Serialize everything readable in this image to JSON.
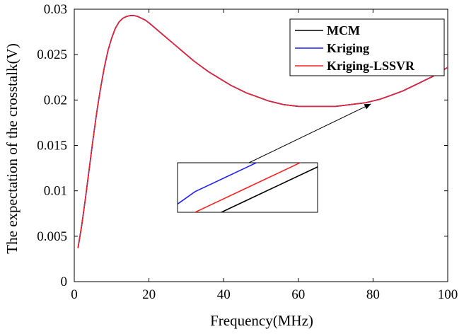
{
  "chart_data": {
    "type": "line",
    "xlabel": "Frequency(MHz)",
    "ylabel": "The expectation of the crosstalk(V)",
    "xlim": [
      0,
      100
    ],
    "ylim": [
      0,
      0.03
    ],
    "grid": false,
    "legend_position": "top-right",
    "xticks": [
      0,
      20,
      40,
      60,
      80,
      100
    ],
    "xtick_labels": [
      "0",
      "20",
      "40",
      "60",
      "80",
      "100"
    ],
    "yticks": [
      0,
      0.005,
      0.01,
      0.015,
      0.02,
      0.025,
      0.03
    ],
    "ytick_labels": [
      "0",
      "0.005",
      "0.01",
      "0.015",
      "0.02",
      "0.025",
      "0.03"
    ],
    "x": [
      1,
      2,
      3,
      4,
      5,
      6,
      7,
      8,
      9,
      10,
      11,
      12,
      13,
      14,
      15,
      16,
      17,
      18,
      19,
      20,
      22,
      24,
      26,
      28,
      30,
      32,
      34,
      36,
      38,
      40,
      42,
      44,
      46,
      48,
      50,
      52,
      54,
      56,
      58,
      60,
      62,
      64,
      66,
      68,
      70,
      72,
      74,
      76,
      78,
      80,
      82,
      84,
      86,
      88,
      90,
      92,
      94,
      96,
      98,
      100
    ],
    "series": [
      {
        "name": "MCM",
        "color": "#000000",
        "values": [
          0.0037,
          0.0062,
          0.0092,
          0.0124,
          0.0156,
          0.0186,
          0.0212,
          0.0235,
          0.0254,
          0.0268,
          0.0279,
          0.0286,
          0.029,
          0.0292,
          0.0293,
          0.0293,
          0.0292,
          0.029,
          0.0288,
          0.0285,
          0.0278,
          0.0271,
          0.0264,
          0.0257,
          0.025,
          0.0243,
          0.0237,
          0.0231,
          0.0226,
          0.0221,
          0.0216,
          0.0212,
          0.0208,
          0.0205,
          0.0202,
          0.0199,
          0.0197,
          0.0195,
          0.0194,
          0.0193,
          0.0193,
          0.0193,
          0.0193,
          0.0193,
          0.0193,
          0.0194,
          0.0195,
          0.0196,
          0.0197,
          0.0199,
          0.0201,
          0.0204,
          0.0207,
          0.021,
          0.0214,
          0.0218,
          0.0222,
          0.0226,
          0.0231,
          0.0236
        ]
      },
      {
        "name": "Kriging",
        "color": "#1f1fff",
        "values": [
          0.0037,
          0.0062,
          0.0092,
          0.0124,
          0.0156,
          0.0186,
          0.0212,
          0.0235,
          0.0254,
          0.0268,
          0.0279,
          0.0286,
          0.029,
          0.0292,
          0.0293,
          0.0293,
          0.0292,
          0.029,
          0.0288,
          0.0285,
          0.0278,
          0.0271,
          0.0264,
          0.0257,
          0.025,
          0.0243,
          0.0237,
          0.0231,
          0.0226,
          0.0221,
          0.0216,
          0.0212,
          0.0208,
          0.0205,
          0.0202,
          0.0199,
          0.0197,
          0.0195,
          0.0194,
          0.0193,
          0.0193,
          0.0193,
          0.0193,
          0.0193,
          0.0193,
          0.0194,
          0.0195,
          0.0196,
          0.0197,
          0.0199,
          0.0201,
          0.0204,
          0.0207,
          0.021,
          0.0214,
          0.0218,
          0.0222,
          0.0226,
          0.0231,
          0.0236
        ]
      },
      {
        "name": "Kriging-LSSVR",
        "color": "#ff2020",
        "values": [
          0.0037,
          0.0062,
          0.0092,
          0.0124,
          0.0156,
          0.0186,
          0.0212,
          0.0235,
          0.0254,
          0.0268,
          0.0279,
          0.0286,
          0.029,
          0.0292,
          0.0293,
          0.0293,
          0.0292,
          0.029,
          0.0288,
          0.0285,
          0.0278,
          0.0271,
          0.0264,
          0.0257,
          0.025,
          0.0243,
          0.0237,
          0.0231,
          0.0226,
          0.0221,
          0.0216,
          0.0212,
          0.0208,
          0.0205,
          0.0202,
          0.0199,
          0.0197,
          0.0195,
          0.0194,
          0.0193,
          0.0193,
          0.0193,
          0.0193,
          0.0193,
          0.0193,
          0.0194,
          0.0195,
          0.0196,
          0.0197,
          0.0199,
          0.0201,
          0.0204,
          0.0207,
          0.021,
          0.0214,
          0.0218,
          0.0222,
          0.0226,
          0.0231,
          0.0236
        ]
      }
    ],
    "annotation": {
      "type": "zoom-inset",
      "points_to": {
        "x": 80,
        "y": 0.0198
      },
      "inset_xlim": [
        79.6,
        80.4
      ],
      "inset_ylim": [
        0.01983,
        0.01995
      ],
      "inset_series": [
        {
          "name": "MCM",
          "x": [
            79.6,
            79.8,
            80.0,
            80.2,
            80.4
          ],
          "y": [
            0.01978,
            0.01982,
            0.01986,
            0.0199,
            0.01994
          ]
        },
        {
          "name": "Kriging",
          "x": [
            79.6,
            79.7,
            79.8,
            80.0,
            80.2,
            80.4
          ],
          "y": [
            0.01985,
            0.01988,
            0.0199,
            0.01994,
            0.01998,
            0.02001
          ]
        },
        {
          "name": "Kriging-LSSVR",
          "x": [
            79.6,
            79.8,
            80.0,
            80.2,
            80.4
          ],
          "y": [
            0.01981,
            0.01985,
            0.01989,
            0.01993,
            0.01997
          ]
        }
      ]
    }
  }
}
